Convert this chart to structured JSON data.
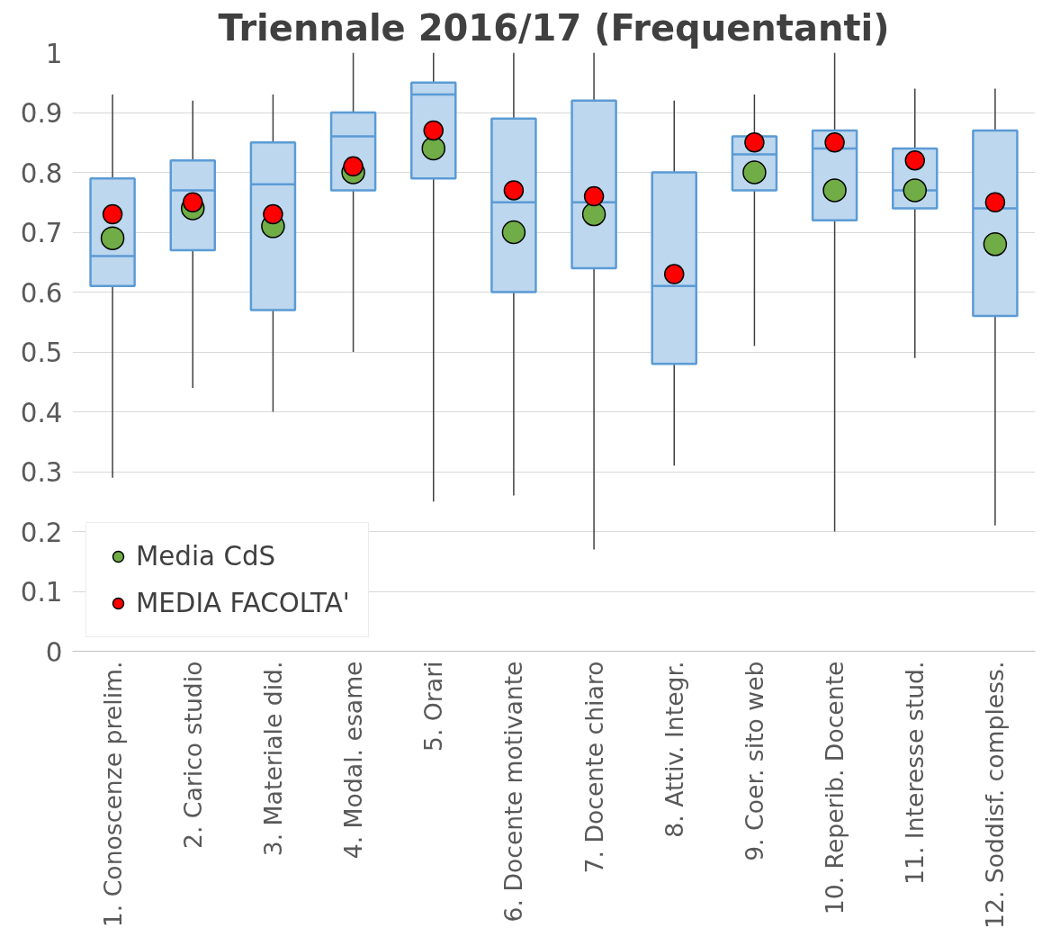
{
  "chart_data": {
    "type": "box",
    "title": "Triennale 2016/17 (Frequentanti)",
    "categories": [
      "1. Conoscenze prelim.",
      "2. Carico studio",
      "3. Materiale did.",
      "4. Modal. esame",
      "5. Orari",
      "6. Docente motivante",
      "7. Docente chiaro",
      "8. Attiv. Integr.",
      "9. Coer. sito web",
      "10. Reperib. Docente",
      "11. Interesse stud.",
      "12. Soddisf. compless."
    ],
    "series": [
      {
        "color": "#bdd7ee",
        "boxes": [
          {
            "low": 0.29,
            "q1": 0.61,
            "median": 0.66,
            "q3": 0.79,
            "high": 0.93
          },
          {
            "low": 0.44,
            "q1": 0.67,
            "median": 0.77,
            "q3": 0.82,
            "high": 0.92
          },
          {
            "low": 0.4,
            "q1": 0.57,
            "median": 0.78,
            "q3": 0.85,
            "high": 0.93
          },
          {
            "low": 0.5,
            "q1": 0.77,
            "median": 0.86,
            "q3": 0.9,
            "high": 1.0
          },
          {
            "low": 0.25,
            "q1": 0.79,
            "median": 0.93,
            "q3": 0.95,
            "high": 1.0
          },
          {
            "low": 0.26,
            "q1": 0.6,
            "median": 0.75,
            "q3": 0.89,
            "high": 1.0
          },
          {
            "low": 0.17,
            "q1": 0.64,
            "median": 0.75,
            "q3": 0.92,
            "high": 1.0
          },
          {
            "low": 0.31,
            "q1": 0.48,
            "median": 0.61,
            "q3": 0.8,
            "high": 0.92
          },
          {
            "low": 0.51,
            "q1": 0.77,
            "median": 0.83,
            "q3": 0.86,
            "high": 0.93
          },
          {
            "low": 0.2,
            "q1": 0.72,
            "median": 0.84,
            "q3": 0.87,
            "high": 1.0
          },
          {
            "low": 0.49,
            "q1": 0.74,
            "median": 0.77,
            "q3": 0.84,
            "high": 0.94
          },
          {
            "low": 0.21,
            "q1": 0.56,
            "median": 0.74,
            "q3": 0.87,
            "high": 0.94
          }
        ]
      },
      {
        "type": "scatter",
        "name": "Media CdS",
        "color": "#70ad47",
        "x": [
          "1. Conoscenze prelim.",
          "2. Carico studio",
          "3. Materiale did.",
          "4. Modal. esame",
          "5. Orari",
          "6. Docente motivante",
          "7. Docente chiaro",
          "8. Attiv. Integr.",
          "9. Coer. sito web",
          "10. Reperib. Docente",
          "11. Interesse stud.",
          "12. Soddisf. compless."
        ],
        "values": [
          0.69,
          0.74,
          0.71,
          0.8,
          0.84,
          0.7,
          0.73,
          null,
          0.8,
          0.77,
          0.77,
          0.68
        ]
      },
      {
        "type": "scatter",
        "name": "MEDIA FACOLTA'",
        "color": "#ff0000",
        "x": [
          "1. Conoscenze prelim.",
          "2. Carico studio",
          "3. Materiale did.",
          "4. Modal. esame",
          "5. Orari",
          "6. Docente motivante",
          "7. Docente chiaro",
          "8. Attiv. Integr.",
          "9. Coer. sito web",
          "10. Reperib. Docente",
          "11. Interesse stud.",
          "12. Soddisf. compless."
        ],
        "values": [
          0.73,
          0.75,
          0.73,
          0.81,
          0.87,
          0.77,
          0.76,
          0.63,
          0.85,
          0.85,
          0.82,
          0.75
        ]
      }
    ],
    "ylim": [
      0,
      1
    ],
    "yticks": [
      0,
      0.1,
      0.2,
      0.3,
      0.4,
      0.5,
      0.6,
      0.7,
      0.8,
      0.9,
      1
    ],
    "grid": "y",
    "legend": "bottom left",
    "marker": "circle"
  }
}
